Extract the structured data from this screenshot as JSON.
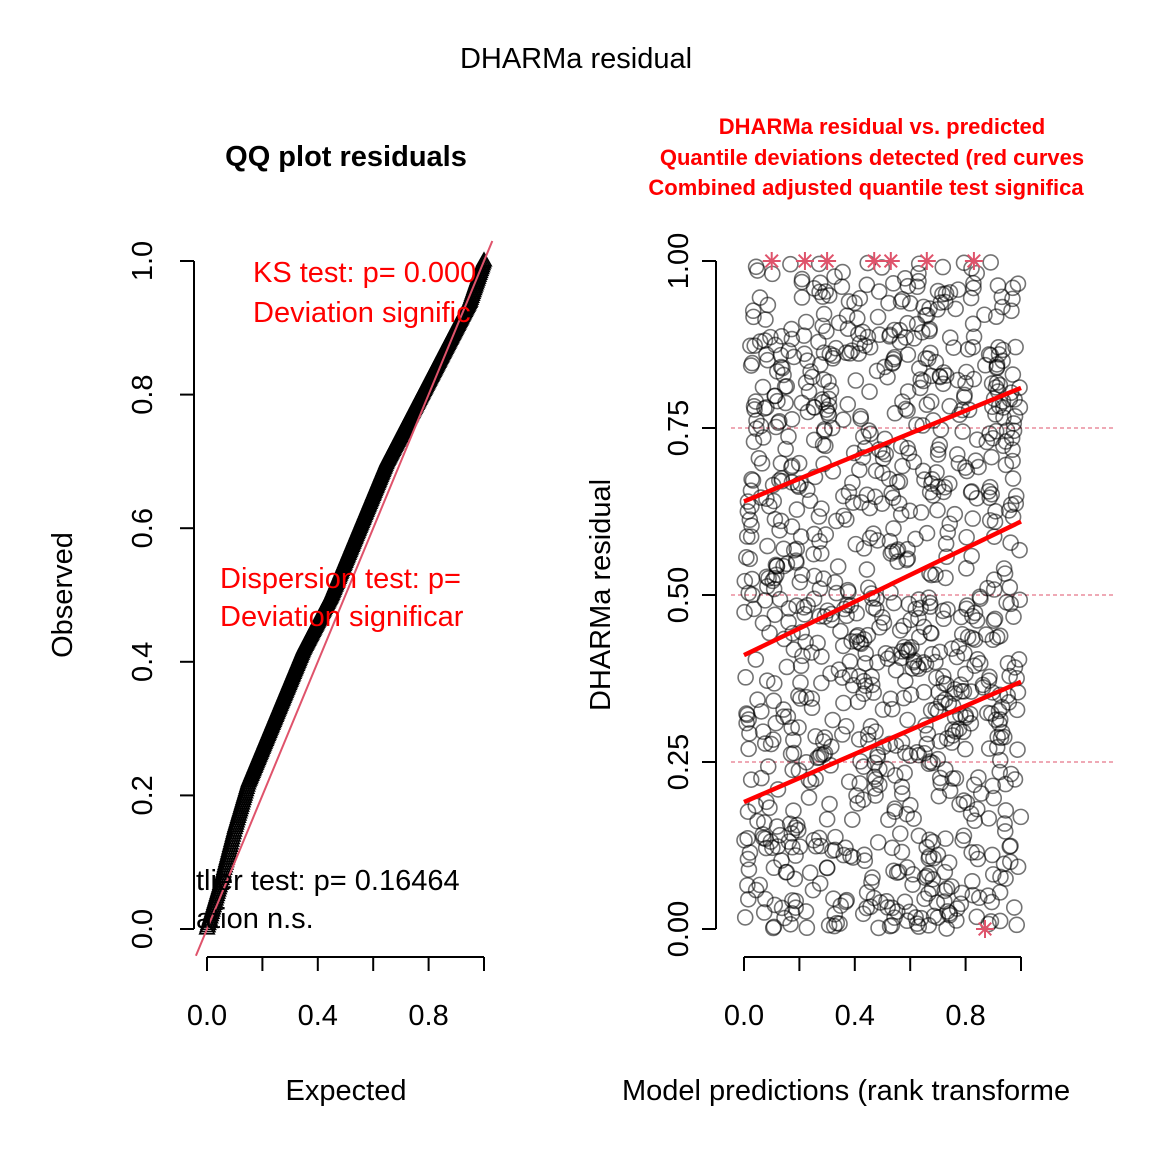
{
  "figure": {
    "title": "DHARMa residual"
  },
  "chart_data": [
    {
      "type": "scatter",
      "title": "QQ plot residuals",
      "xlabel": "Expected",
      "ylabel": "Observed",
      "xlim": [
        -0.04,
        1.02
      ],
      "ylim": [
        0.0,
        1.0
      ],
      "x_ticks": [
        "0.0",
        "0.4",
        "0.8"
      ],
      "x_tick_values": [
        0.0,
        0.2,
        0.4,
        0.6,
        0.8,
        1.0
      ],
      "y_ticks": [
        "0.0",
        "0.2",
        "0.4",
        "0.6",
        "0.8",
        "1.0"
      ],
      "y_tick_values": [
        0.0,
        0.2,
        0.4,
        0.6,
        0.8,
        1.0
      ],
      "reference_line": {
        "slope": 1,
        "intercept": 0,
        "color": "#df536b"
      },
      "series": [
        {
          "marker": "triangle",
          "color": "#000000",
          "x": [
            0.0,
            0.05,
            0.1,
            0.15,
            0.2,
            0.25,
            0.3,
            0.35,
            0.4,
            0.45,
            0.5,
            0.55,
            0.6,
            0.65,
            0.7,
            0.75,
            0.8,
            0.85,
            0.9,
            0.95,
            1.0
          ],
          "y": [
            0.0,
            0.07,
            0.15,
            0.22,
            0.27,
            0.32,
            0.37,
            0.42,
            0.46,
            0.5,
            0.55,
            0.6,
            0.65,
            0.7,
            0.74,
            0.78,
            0.82,
            0.86,
            0.9,
            0.94,
            1.0
          ]
        }
      ],
      "annotations": {
        "ks_line1": "KS test: p= 0.000",
        "ks_line2": "Deviation  signific",
        "disp_line1": "Dispersion test: p=",
        "disp_line2": "Deviation  significar",
        "outlier_line1": "tlier test: p= 0.16464",
        "outlier_line2": "ation  n.s."
      },
      "annotation_colors": {
        "significant": "#ff0000",
        "ns": "#000000"
      }
    },
    {
      "type": "scatter",
      "title_lines": [
        "DHARMa residual vs. predicted",
        "Quantile deviations detected (red curves",
        "Combined adjusted quantile test significa"
      ],
      "title_color": "#ff0000",
      "xlabel": "Model predictions (rank transforme",
      "ylabel": "DHARMa residual",
      "xlim": [
        0.0,
        1.0
      ],
      "ylim": [
        0.0,
        1.0
      ],
      "x_ticks": [
        "0.0",
        "0.4",
        "0.8"
      ],
      "x_tick_values": [
        0.0,
        0.2,
        0.4,
        0.6,
        0.8,
        1.0
      ],
      "y_ticks": [
        "0.00",
        "0.25",
        "0.50",
        "0.75",
        "1.00"
      ],
      "y_tick_values": [
        0.0,
        0.25,
        0.5,
        0.75,
        1.0
      ],
      "hlines": [
        0.25,
        0.5,
        0.75
      ],
      "hline_color": "#df536b",
      "points": {
        "count": 1000,
        "distribution": "uniform",
        "marker": "open-circle",
        "color": "#000000"
      },
      "quantile_lines": [
        {
          "quantile": 0.25,
          "x": [
            0,
            1
          ],
          "y": [
            0.19,
            0.37
          ],
          "color": "#ff0000"
        },
        {
          "quantile": 0.5,
          "x": [
            0,
            1
          ],
          "y": [
            0.41,
            0.61
          ],
          "color": "#ff0000"
        },
        {
          "quantile": 0.75,
          "x": [
            0,
            1
          ],
          "y": [
            0.64,
            0.81
          ],
          "color": "#ff0000"
        }
      ],
      "outliers": {
        "marker": "asterisk",
        "color": "#df536b",
        "x": [
          0.1,
          0.22,
          0.3,
          0.47,
          0.53,
          0.66,
          0.83,
          0.87
        ],
        "y": [
          1.0,
          1.0,
          1.0,
          1.0,
          1.0,
          1.0,
          1.0,
          0.0
        ]
      }
    }
  ]
}
